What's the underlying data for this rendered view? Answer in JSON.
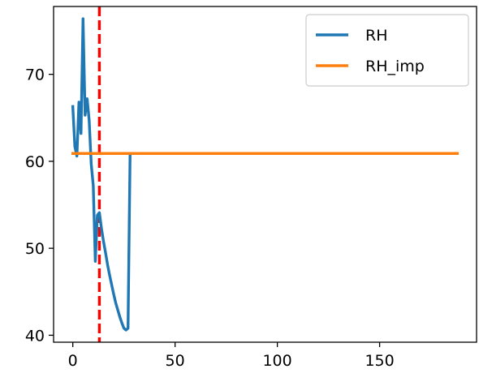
{
  "chart_data": {
    "type": "line",
    "title": "",
    "xlabel": "",
    "ylabel": "",
    "xlim": [
      -9.4,
      197.4
    ],
    "ylim": [
      39.2,
      77.8
    ],
    "xticks": [
      0,
      50,
      100,
      150
    ],
    "yticks": [
      40,
      50,
      60,
      70
    ],
    "grid": false,
    "legend": "top-right",
    "vline": {
      "x": 13,
      "color": "#ff0000",
      "style": "dashed"
    },
    "series": [
      {
        "name": "RH",
        "color": "#1f77b4",
        "x": [
          0,
          1,
          2,
          3,
          4,
          5,
          6,
          7,
          8,
          9,
          10,
          11,
          12,
          13,
          14,
          15,
          16,
          17,
          18,
          19,
          20,
          21,
          22,
          23,
          24,
          25,
          26,
          27,
          28
        ],
        "y": [
          66.3,
          61.7,
          60.6,
          66.8,
          63.2,
          76.4,
          65.3,
          67.2,
          64.7,
          59.7,
          57.2,
          48.5,
          53.8,
          54.1,
          52.3,
          50.8,
          49.5,
          48.1,
          46.9,
          45.8,
          44.7,
          43.7,
          42.9,
          42.1,
          41.4,
          40.8,
          40.6,
          40.8,
          60.8
        ]
      },
      {
        "name": "RH_imp",
        "color": "#ff7f0e",
        "x": [
          0,
          188
        ],
        "y": [
          60.9,
          60.9
        ]
      }
    ]
  }
}
